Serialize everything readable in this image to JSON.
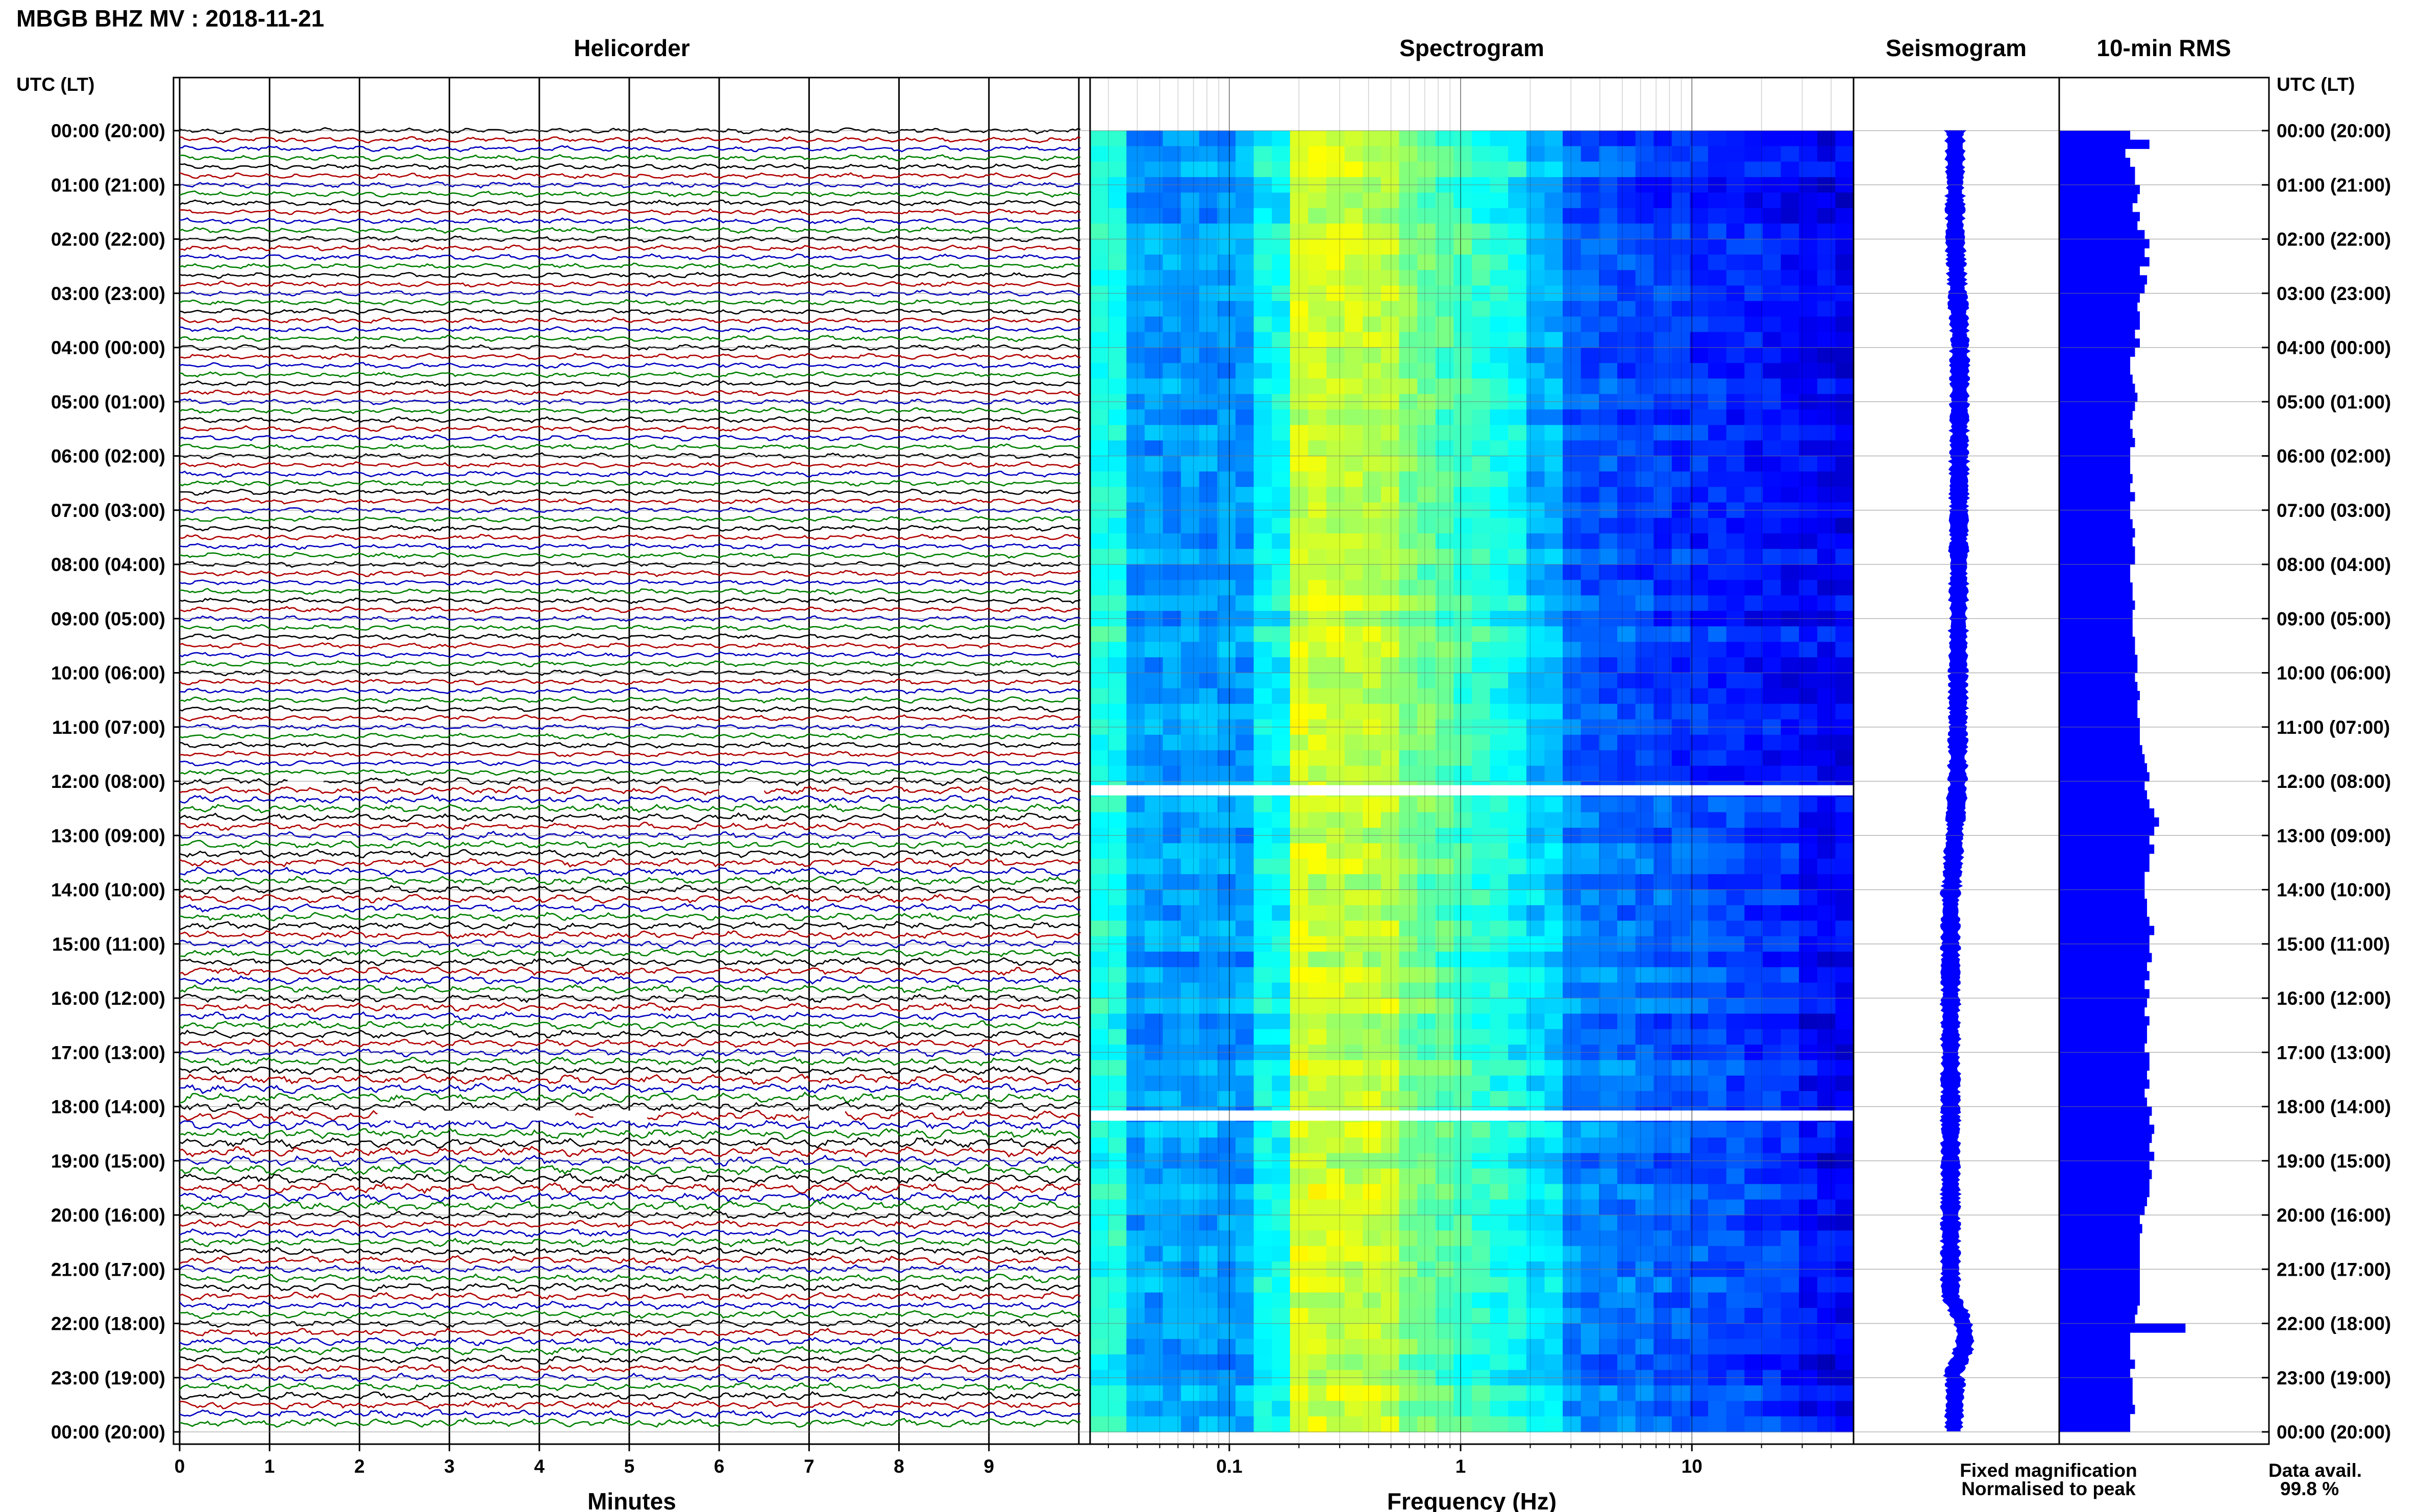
{
  "header": {
    "title": "MBGB BHZ MV : 2018-11-21",
    "utc_label_left": "UTC (LT)",
    "utc_label_right": "UTC (LT)"
  },
  "chart_data": [
    {
      "type": "line",
      "title": "Helicorder",
      "xlabel": "Minutes",
      "xlim": [
        0,
        10
      ],
      "x_ticks": [
        "0",
        "1",
        "2",
        "3",
        "4",
        "5",
        "6",
        "7",
        "8",
        "9"
      ],
      "row_interval_min": 10,
      "trace_color_cycle": [
        "#000000",
        "#b00000",
        "#0000c0",
        "#008000"
      ],
      "gaps": [
        {
          "time": "12:00",
          "minute_start": 1.2,
          "minute_end": 1.6
        },
        {
          "time": "12:10",
          "minute_start": 6.0,
          "minute_end": 6.5
        },
        {
          "time": "18:10",
          "minute_start": 2.2,
          "minute_end": 4.4
        },
        {
          "time": "18:10",
          "minute_start": 4.6,
          "minute_end": 5.2
        },
        {
          "time": "18:10",
          "minute_start": 7.0,
          "minute_end": 7.4
        }
      ]
    },
    {
      "type": "heatmap",
      "title": "Spectrogram",
      "xlabel": "Frequency (Hz)",
      "x_scale": "log",
      "xlim": [
        0.025,
        50
      ],
      "x_ticks": [
        "0.1",
        "1",
        "10"
      ],
      "colormap": "jet",
      "peak_band_hz": [
        0.2,
        0.5
      ],
      "gap_rows": [
        "12:10",
        "18:10"
      ]
    },
    {
      "type": "line",
      "title": "Seismogram",
      "color": "#0000ff",
      "note_times": [
        "22:00"
      ]
    },
    {
      "type": "bar",
      "title": "10-min RMS",
      "orientation": "horizontal",
      "color": "#0000ff",
      "values_relative": [
        0.72,
        0.8,
        0.7,
        0.72,
        0.74,
        0.74,
        0.76,
        0.75,
        0.73,
        0.76,
        0.75,
        0.78,
        0.8,
        0.78,
        0.8,
        0.76,
        0.79,
        0.78,
        0.76,
        0.75,
        0.76,
        0.76,
        0.74,
        0.76,
        0.74,
        0.72,
        0.72,
        0.73,
        0.74,
        0.75,
        0.74,
        0.73,
        0.72,
        0.73,
        0.74,
        0.72,
        0.72,
        0.72,
        0.73,
        0.72,
        0.74,
        0.72,
        0.72,
        0.73,
        0.74,
        0.73,
        0.74,
        0.74,
        0.72,
        0.72,
        0.73,
        0.73,
        0.74,
        0.73,
        0.73,
        0.73,
        0.74,
        0.74,
        0.75,
        0.75,
        0.74,
        0.75,
        0.76,
        0.75,
        0.75,
        0.76,
        0.76,
        0.76,
        0.77,
        0.78,
        0.79,
        0.8,
        0.78,
        0.79,
        0.8,
        0.82,
        0.84,
        0.82,
        0.8,
        0.82,
        0.8,
        0.8,
        0.78,
        0.78,
        0.78,
        0.79,
        0.79,
        0.8,
        0.82,
        0.8,
        0.8,
        0.81,
        0.79,
        0.8,
        0.78,
        0.8,
        0.79,
        0.78,
        0.8,
        0.79,
        0.79,
        0.78,
        0.8,
        0.8,
        0.79,
        0.8,
        0.78,
        0.79,
        0.81,
        0.8,
        0.82,
        0.81,
        0.8,
        0.82,
        0.8,
        0.81,
        0.8,
        0.8,
        0.79,
        0.78,
        0.76,
        0.77,
        0.76,
        0.76,
        0.76,
        0.76,
        0.76,
        0.76,
        0.76,
        0.76,
        0.75,
        0.74,
        0.95,
        0.72,
        0.72,
        0.72,
        0.74,
        0.72,
        0.73,
        0.73,
        0.73,
        0.74,
        0.72,
        0.72
      ]
    }
  ],
  "time_labels": [
    "00:00 (20:00)",
    "01:00 (21:00)",
    "02:00 (22:00)",
    "03:00 (23:00)",
    "04:00 (00:00)",
    "05:00 (01:00)",
    "06:00 (02:00)",
    "07:00 (03:00)",
    "08:00 (04:00)",
    "09:00 (05:00)",
    "10:00 (06:00)",
    "11:00 (07:00)",
    "12:00 (08:00)",
    "13:00 (09:00)",
    "14:00 (10:00)",
    "15:00 (11:00)",
    "16:00 (12:00)",
    "17:00 (13:00)",
    "18:00 (14:00)",
    "19:00 (15:00)",
    "20:00 (16:00)",
    "21:00 (17:00)",
    "22:00 (18:00)",
    "23:00 (19:00)",
    "00:00 (20:00)"
  ],
  "legend": {
    "fixed": {
      "text": "Fixed magnification",
      "color": "#0000ff"
    },
    "normalised": {
      "text": "Normalised to peak",
      "color": "#ff0000"
    }
  },
  "availability": {
    "label": "Data avail.",
    "value": "99.8 %"
  }
}
